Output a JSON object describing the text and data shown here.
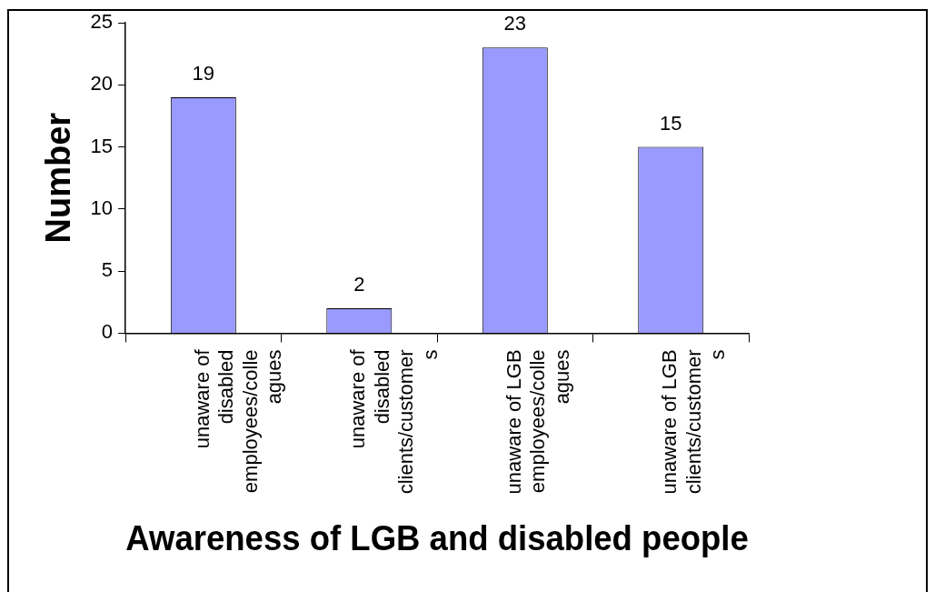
{
  "chart_data": {
    "type": "bar",
    "xlabel": "Awareness of LGB and disabled people",
    "ylabel": "Number",
    "categories": [
      "unaware of disabled employees/colleagues",
      "unaware of disabled clients/customers",
      "unaware of LGB employees/colleagues",
      "unaware of LGB clients/customers"
    ],
    "values": [
      19,
      2,
      23,
      15
    ],
    "color": "#9999ff",
    "ylim": [
      0,
      25
    ],
    "yticks": [
      0,
      5,
      10,
      15,
      20,
      25
    ],
    "grid": false,
    "legend": false,
    "data_labels": true
  }
}
